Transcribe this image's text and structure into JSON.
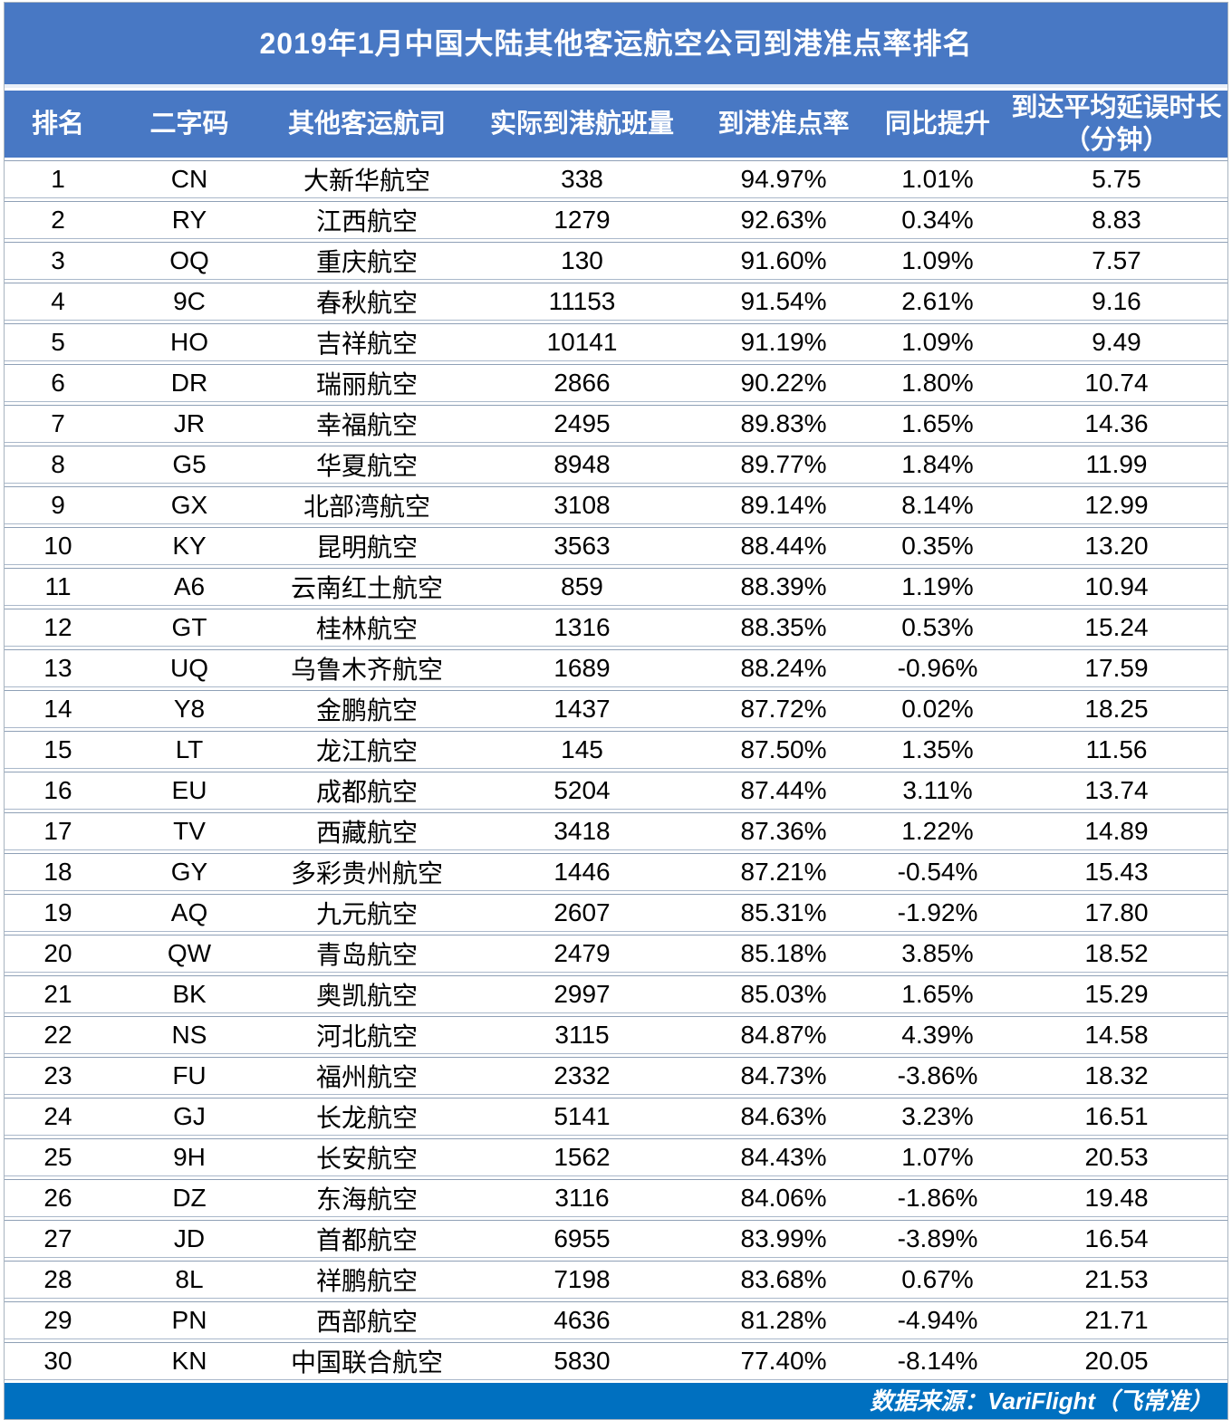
{
  "chart_data": {
    "type": "table",
    "title": "2019年1月中国大陆其他客运航空公司到港准点率排名",
    "columns": [
      "排名",
      "二字码",
      "其他客运航司",
      "实际到港航班量",
      "到港准点率",
      "同比提升",
      "到达平均延误时长（分钟）"
    ],
    "column_lines": [
      [
        "排名"
      ],
      [
        "二字码"
      ],
      [
        "其他客运航司"
      ],
      [
        "实际到港航班量"
      ],
      [
        "到港准点率"
      ],
      [
        "同比提升"
      ],
      [
        "到达平均延误时长",
        "（分钟）"
      ]
    ],
    "field_names": [
      "rank",
      "iata-code",
      "airline-name",
      "arrival-flights",
      "ontime-rate",
      "yoy-change",
      "avg-delay-minutes"
    ],
    "rows": [
      [
        "1",
        "CN",
        "大新华航空",
        "338",
        "94.97%",
        "1.01%",
        "5.75"
      ],
      [
        "2",
        "RY",
        "江西航空",
        "1279",
        "92.63%",
        "0.34%",
        "8.83"
      ],
      [
        "3",
        "OQ",
        "重庆航空",
        "130",
        "91.60%",
        "1.09%",
        "7.57"
      ],
      [
        "4",
        "9C",
        "春秋航空",
        "11153",
        "91.54%",
        "2.61%",
        "9.16"
      ],
      [
        "5",
        "HO",
        "吉祥航空",
        "10141",
        "91.19%",
        "1.09%",
        "9.49"
      ],
      [
        "6",
        "DR",
        "瑞丽航空",
        "2866",
        "90.22%",
        "1.80%",
        "10.74"
      ],
      [
        "7",
        "JR",
        "幸福航空",
        "2495",
        "89.83%",
        "1.65%",
        "14.36"
      ],
      [
        "8",
        "G5",
        "华夏航空",
        "8948",
        "89.77%",
        "1.84%",
        "11.99"
      ],
      [
        "9",
        "GX",
        "北部湾航空",
        "3108",
        "89.14%",
        "8.14%",
        "12.99"
      ],
      [
        "10",
        "KY",
        "昆明航空",
        "3563",
        "88.44%",
        "0.35%",
        "13.20"
      ],
      [
        "11",
        "A6",
        "云南红土航空",
        "859",
        "88.39%",
        "1.19%",
        "10.94"
      ],
      [
        "12",
        "GT",
        "桂林航空",
        "1316",
        "88.35%",
        "0.53%",
        "15.24"
      ],
      [
        "13",
        "UQ",
        "乌鲁木齐航空",
        "1689",
        "88.24%",
        "-0.96%",
        "17.59"
      ],
      [
        "14",
        "Y8",
        "金鹏航空",
        "1437",
        "87.72%",
        "0.02%",
        "18.25"
      ],
      [
        "15",
        "LT",
        "龙江航空",
        "145",
        "87.50%",
        "1.35%",
        "11.56"
      ],
      [
        "16",
        "EU",
        "成都航空",
        "5204",
        "87.44%",
        "3.11%",
        "13.74"
      ],
      [
        "17",
        "TV",
        "西藏航空",
        "3418",
        "87.36%",
        "1.22%",
        "14.89"
      ],
      [
        "18",
        "GY",
        "多彩贵州航空",
        "1446",
        "87.21%",
        "-0.54%",
        "15.43"
      ],
      [
        "19",
        "AQ",
        "九元航空",
        "2607",
        "85.31%",
        "-1.92%",
        "17.80"
      ],
      [
        "20",
        "QW",
        "青岛航空",
        "2479",
        "85.18%",
        "3.85%",
        "18.52"
      ],
      [
        "21",
        "BK",
        "奥凯航空",
        "2997",
        "85.03%",
        "1.65%",
        "15.29"
      ],
      [
        "22",
        "NS",
        "河北航空",
        "3115",
        "84.87%",
        "4.39%",
        "14.58"
      ],
      [
        "23",
        "FU",
        "福州航空",
        "2332",
        "84.73%",
        "-3.86%",
        "18.32"
      ],
      [
        "24",
        "GJ",
        "长龙航空",
        "5141",
        "84.63%",
        "3.23%",
        "16.51"
      ],
      [
        "25",
        "9H",
        "长安航空",
        "1562",
        "84.43%",
        "1.07%",
        "20.53"
      ],
      [
        "26",
        "DZ",
        "东海航空",
        "3116",
        "84.06%",
        "-1.86%",
        "19.48"
      ],
      [
        "27",
        "JD",
        "首都航空",
        "6955",
        "83.99%",
        "-3.89%",
        "16.54"
      ],
      [
        "28",
        "8L",
        "祥鹏航空",
        "7198",
        "83.68%",
        "0.67%",
        "21.53"
      ],
      [
        "29",
        "PN",
        "西部航空",
        "4636",
        "81.28%",
        "-4.94%",
        "21.71"
      ],
      [
        "30",
        "KN",
        "中国联合航空",
        "5830",
        "77.40%",
        "-8.14%",
        "20.05"
      ]
    ],
    "source": "数据来源：VariFlight（飞常准）",
    "layout": {
      "grid": "horizontal-lines-only",
      "header_position": "top",
      "source_position": "bottom-right"
    }
  },
  "colors": {
    "header_blue": "#4878C4",
    "footer_blue": "#0070C0",
    "row_line": "#8FA0B6",
    "row_line_light": "#AAB8CA",
    "text_on_blue": "#FFFFFF",
    "text_data": "#000000"
  }
}
